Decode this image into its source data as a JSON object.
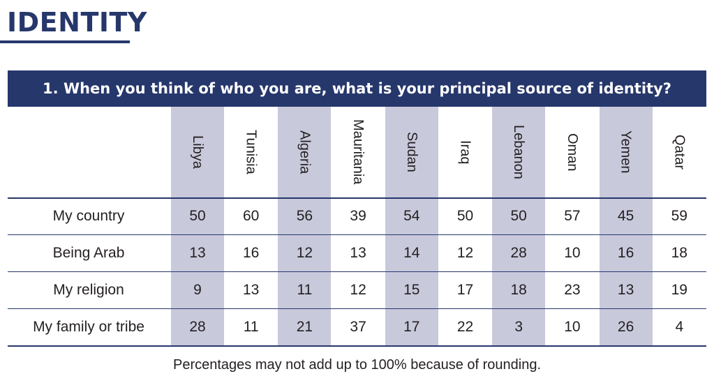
{
  "section_title": "IDENTITY",
  "question": "1. When you think of who you are, what is your principal source of identity?",
  "footnote": "Percentages may not add up to 100% because of rounding.",
  "colors": {
    "navy": "#26376b",
    "band": "#c9c9dc",
    "text": "#231f20"
  },
  "chart_data": {
    "type": "table",
    "title": "1. When you think of who you are, what is your principal source of identity?",
    "columns": [
      "Libya",
      "Tunisia",
      "Algeria",
      "Mauritania",
      "Sudan",
      "Iraq",
      "Lebanon",
      "Oman",
      "Yemen",
      "Qatar"
    ],
    "rows": [
      {
        "label": "My country",
        "values": [
          50,
          60,
          56,
          39,
          54,
          50,
          50,
          57,
          45,
          59
        ]
      },
      {
        "label": "Being Arab",
        "values": [
          13,
          16,
          12,
          13,
          14,
          12,
          28,
          10,
          16,
          18
        ]
      },
      {
        "label": "My religion",
        "values": [
          9,
          13,
          11,
          12,
          15,
          17,
          18,
          23,
          13,
          19
        ]
      },
      {
        "label": "My family or tribe",
        "values": [
          28,
          11,
          21,
          37,
          17,
          22,
          3,
          10,
          26,
          4
        ]
      }
    ],
    "shaded_columns": [
      "Libya",
      "Algeria",
      "Sudan",
      "Lebanon",
      "Yemen"
    ]
  }
}
